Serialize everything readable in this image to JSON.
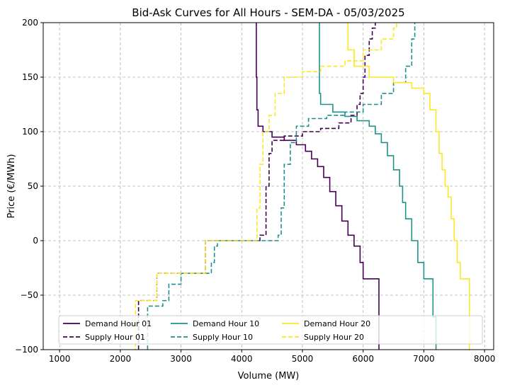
{
  "chart_data": {
    "type": "line",
    "title": "Bid-Ask Curves for All Hours - SEM-DA - 05/03/2025",
    "xlabel": "Volume (MW)",
    "ylabel": "Price (€/MWh)",
    "xlim": [
      730,
      8150
    ],
    "ylim": [
      -100,
      200
    ],
    "xticks": [
      1000,
      2000,
      3000,
      4000,
      5000,
      6000,
      7000,
      8000
    ],
    "yticks": [
      -100,
      -50,
      0,
      50,
      100,
      150,
      200
    ],
    "xtick_labels": [
      "1000",
      "2000",
      "3000",
      "4000",
      "5000",
      "6000",
      "7000",
      "8000"
    ],
    "ytick_labels": [
      "−100",
      "−50",
      "0",
      "50",
      "100",
      "150",
      "200"
    ],
    "grid": true,
    "legend_position": "lower center",
    "series": [
      {
        "name": "Demand Hour 01",
        "color": "#440154",
        "dash": "solid",
        "points": [
          [
            4240,
            200
          ],
          [
            4240,
            150
          ],
          [
            4250,
            120
          ],
          [
            4270,
            105
          ],
          [
            4350,
            100
          ],
          [
            4500,
            95
          ],
          [
            4700,
            92
          ],
          [
            4900,
            88
          ],
          [
            5050,
            82
          ],
          [
            5150,
            75
          ],
          [
            5250,
            68
          ],
          [
            5350,
            58
          ],
          [
            5450,
            45
          ],
          [
            5550,
            32
          ],
          [
            5650,
            18
          ],
          [
            5750,
            5
          ],
          [
            5850,
            -5
          ],
          [
            5950,
            -20
          ],
          [
            6000,
            -35
          ],
          [
            6250,
            -35
          ],
          [
            6260,
            -100
          ]
        ]
      },
      {
        "name": "Supply Hour 01",
        "color": "#440154",
        "dash": "dashed",
        "points": [
          [
            2300,
            -100
          ],
          [
            2300,
            -55
          ],
          [
            2600,
            -55
          ],
          [
            2600,
            -30
          ],
          [
            3300,
            -30
          ],
          [
            3400,
            0
          ],
          [
            4200,
            0
          ],
          [
            4300,
            5
          ],
          [
            4400,
            50
          ],
          [
            4450,
            80
          ],
          [
            4500,
            92
          ],
          [
            4700,
            96
          ],
          [
            5000,
            100
          ],
          [
            5300,
            103
          ],
          [
            5600,
            108
          ],
          [
            5800,
            115
          ],
          [
            5900,
            125
          ],
          [
            5950,
            135
          ],
          [
            6000,
            150
          ],
          [
            6030,
            170
          ],
          [
            6100,
            185
          ],
          [
            6150,
            195
          ],
          [
            6200,
            200
          ]
        ]
      },
      {
        "name": "Demand Hour 10",
        "color": "#21918c",
        "dash": "solid",
        "points": [
          [
            5280,
            200
          ],
          [
            5280,
            135
          ],
          [
            5300,
            125
          ],
          [
            5500,
            118
          ],
          [
            5700,
            114
          ],
          [
            5900,
            110
          ],
          [
            6100,
            105
          ],
          [
            6200,
            98
          ],
          [
            6300,
            90
          ],
          [
            6400,
            78
          ],
          [
            6500,
            65
          ],
          [
            6600,
            50
          ],
          [
            6650,
            35
          ],
          [
            6700,
            20
          ],
          [
            6800,
            0
          ],
          [
            6900,
            -20
          ],
          [
            7000,
            -35
          ],
          [
            7100,
            -35
          ],
          [
            7150,
            -70
          ],
          [
            7200,
            -100
          ]
        ]
      },
      {
        "name": "Supply Hour 10",
        "color": "#21918c",
        "dash": "dashed",
        "points": [
          [
            2450,
            -100
          ],
          [
            2450,
            -60
          ],
          [
            2700,
            -55
          ],
          [
            2800,
            -40
          ],
          [
            3000,
            -30
          ],
          [
            3500,
            -20
          ],
          [
            3550,
            -5
          ],
          [
            3600,
            0
          ],
          [
            4550,
            0
          ],
          [
            4600,
            5
          ],
          [
            4650,
            30
          ],
          [
            4700,
            70
          ],
          [
            4800,
            90
          ],
          [
            4900,
            105
          ],
          [
            5100,
            112
          ],
          [
            5400,
            115
          ],
          [
            5700,
            118
          ],
          [
            6000,
            125
          ],
          [
            6300,
            135
          ],
          [
            6500,
            145
          ],
          [
            6700,
            160
          ],
          [
            6800,
            185
          ],
          [
            6850,
            200
          ]
        ]
      },
      {
        "name": "Demand Hour 20",
        "color": "#fde725",
        "dash": "solid",
        "points": [
          [
            5700,
            200
          ],
          [
            5750,
            175
          ],
          [
            5850,
            160
          ],
          [
            6100,
            150
          ],
          [
            6500,
            145
          ],
          [
            6800,
            140
          ],
          [
            7000,
            135
          ],
          [
            7100,
            120
          ],
          [
            7200,
            100
          ],
          [
            7250,
            80
          ],
          [
            7300,
            65
          ],
          [
            7350,
            50
          ],
          [
            7400,
            40
          ],
          [
            7450,
            20
          ],
          [
            7500,
            0
          ],
          [
            7550,
            -20
          ],
          [
            7600,
            -35
          ],
          [
            7700,
            -35
          ],
          [
            7750,
            -70
          ],
          [
            7750,
            -100
          ]
        ]
      },
      {
        "name": "Supply Hour 20",
        "color": "#fde725",
        "dash": "dashed",
        "points": [
          [
            2200,
            -100
          ],
          [
            2250,
            -55
          ],
          [
            2550,
            -55
          ],
          [
            2600,
            -30
          ],
          [
            3300,
            -30
          ],
          [
            3400,
            0
          ],
          [
            4200,
            0
          ],
          [
            4250,
            30
          ],
          [
            4300,
            70
          ],
          [
            4350,
            100
          ],
          [
            4450,
            115
          ],
          [
            4550,
            135
          ],
          [
            4700,
            150
          ],
          [
            5000,
            155
          ],
          [
            5300,
            160
          ],
          [
            5700,
            165
          ],
          [
            6000,
            175
          ],
          [
            6300,
            185
          ],
          [
            6500,
            195
          ],
          [
            6550,
            200
          ]
        ]
      }
    ]
  }
}
